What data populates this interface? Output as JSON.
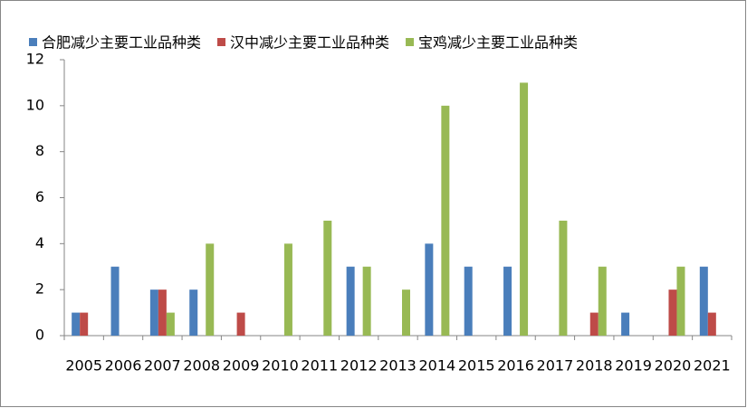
{
  "chart_data": {
    "type": "bar",
    "categories": [
      "2005",
      "2006",
      "2007",
      "2008",
      "2009",
      "2010",
      "2011",
      "2012",
      "2013",
      "2014",
      "2015",
      "2016",
      "2017",
      "2018",
      "2019",
      "2020",
      "2021"
    ],
    "series": [
      {
        "name": "合肥减少主要工业品种类",
        "color": "#4a7ebb",
        "values": [
          1,
          3,
          2,
          2,
          0,
          0,
          0,
          3,
          0,
          4,
          3,
          3,
          0,
          0,
          1,
          0,
          3
        ]
      },
      {
        "name": "汉中减少主要工业品种类",
        "color": "#be4b48",
        "values": [
          1,
          0,
          2,
          0,
          1,
          0,
          0,
          0,
          0,
          0,
          0,
          0,
          0,
          1,
          0,
          2,
          1
        ]
      },
      {
        "name": "宝鸡减少主要工业品种类",
        "color": "#98b954",
        "values": [
          0,
          0,
          1,
          4,
          0,
          4,
          5,
          3,
          2,
          10,
          0,
          11,
          5,
          3,
          0,
          3,
          0
        ]
      }
    ],
    "ylim": [
      0,
      12
    ],
    "yticks": [
      0,
      2,
      4,
      6,
      8,
      10,
      12
    ],
    "grid": false,
    "legend": "top"
  }
}
